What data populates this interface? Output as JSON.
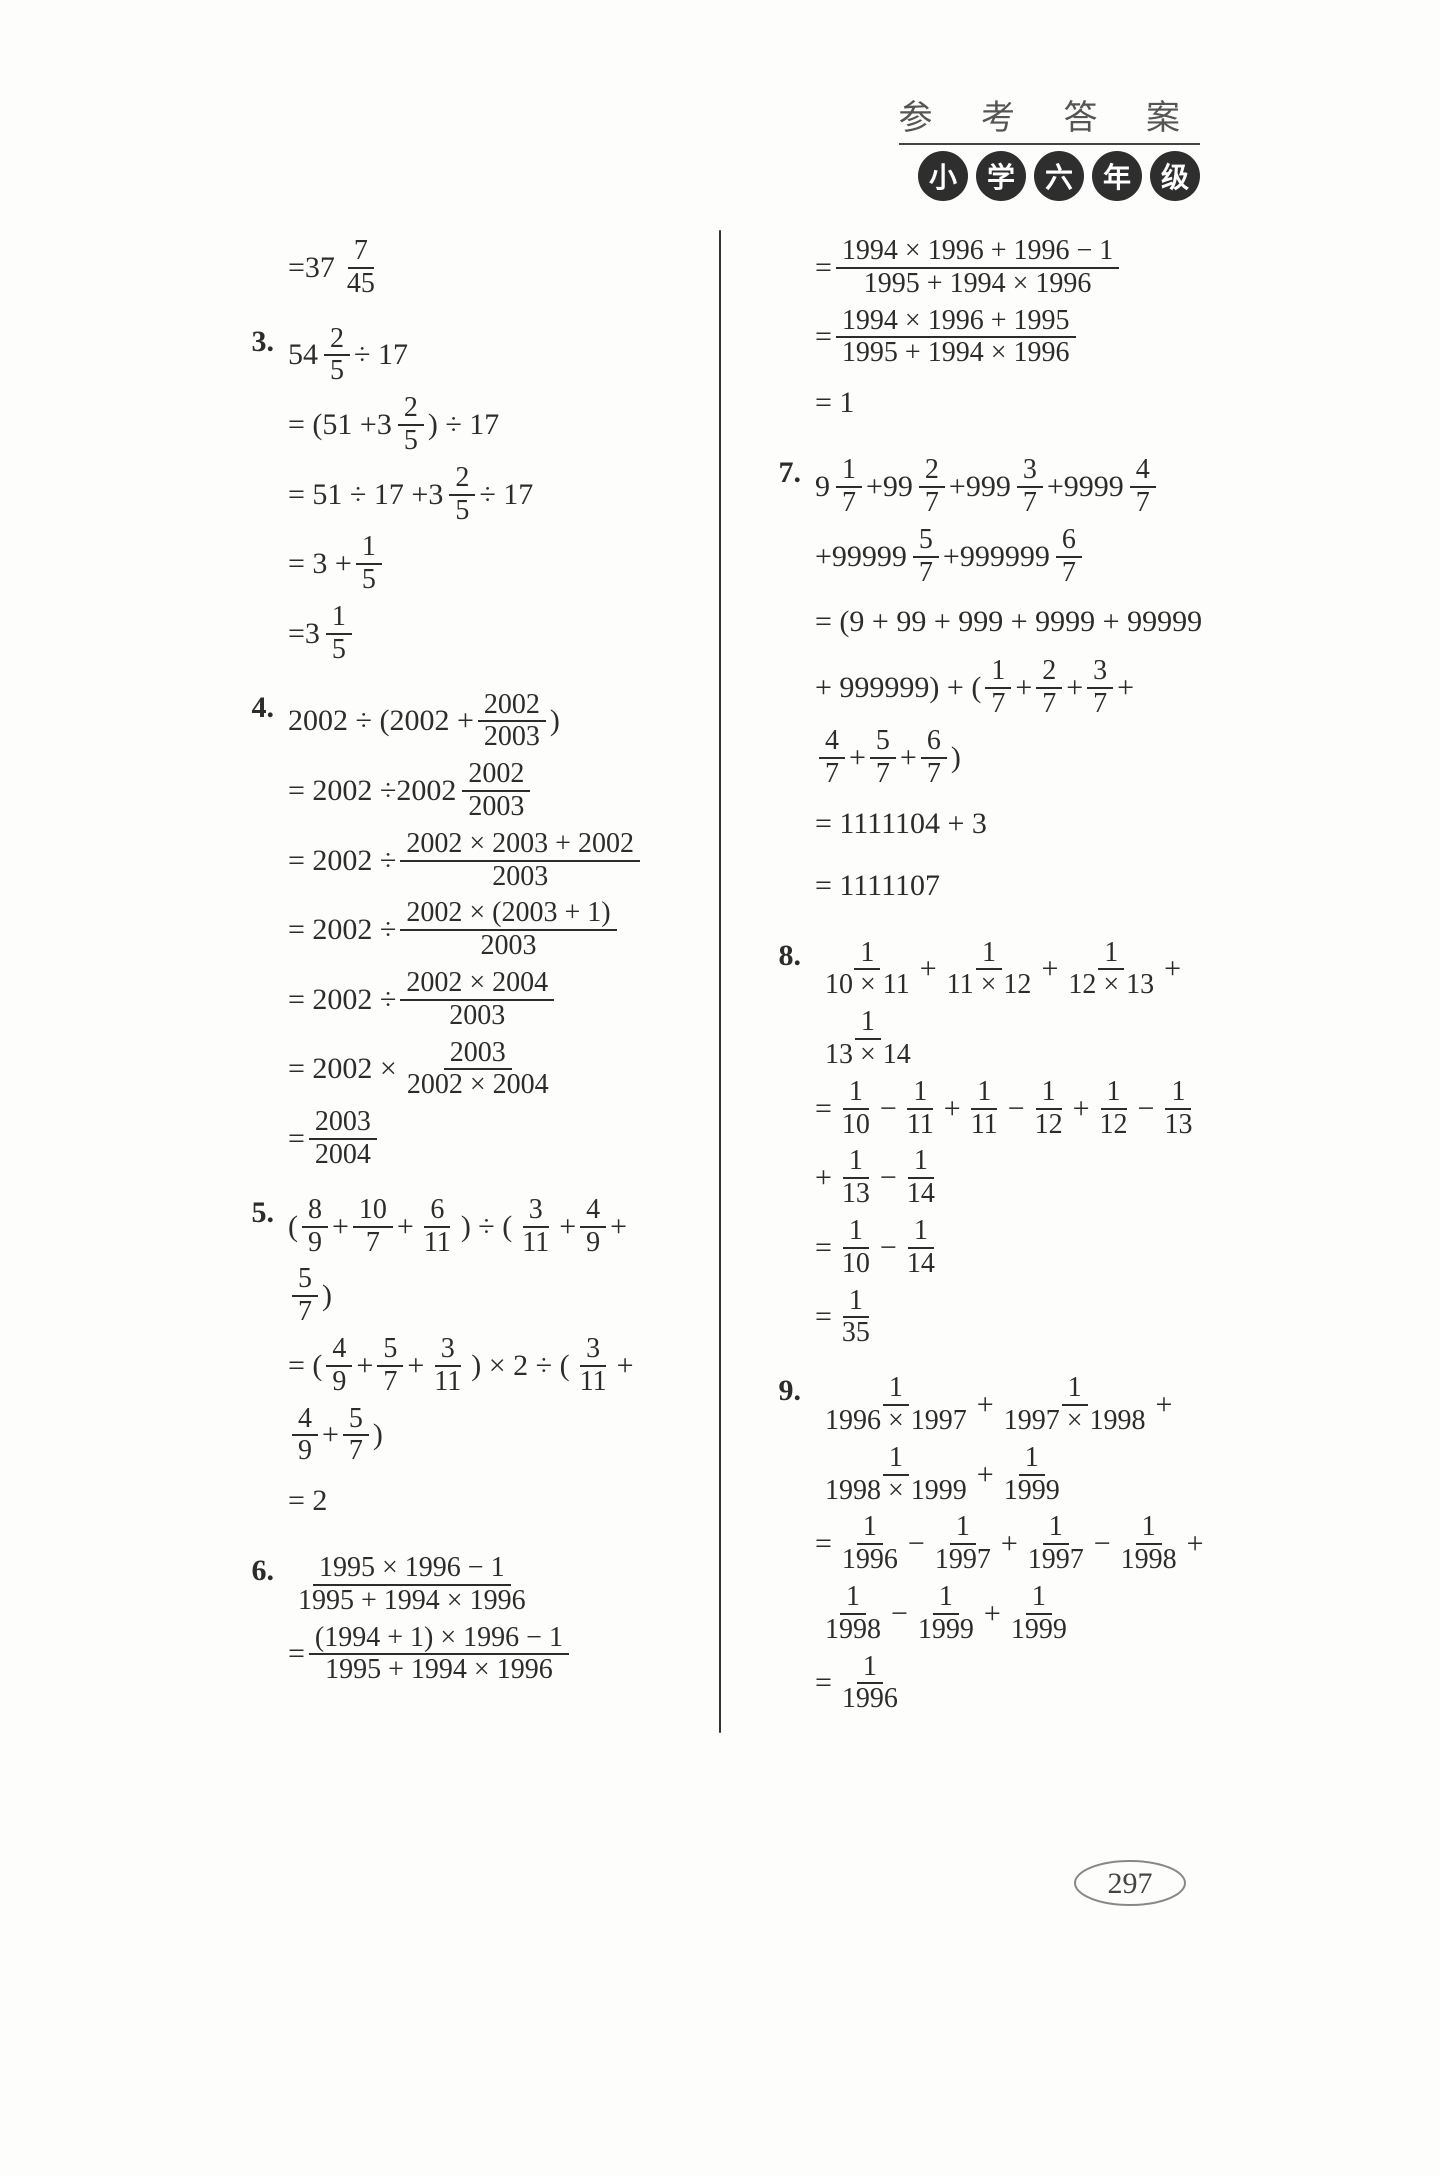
{
  "header": {
    "title": "参 考 答 案",
    "badges": [
      "小",
      "学",
      "六",
      "年",
      "级"
    ]
  },
  "page_number": "297",
  "colors": {
    "badge_bg": "#2e2e2e",
    "badge_fg": "#ffffff",
    "text": "#2c2c2c",
    "bg": "#fdfdfb",
    "divider": "#333333"
  },
  "left_column": [
    {
      "num": "",
      "steps": [
        [
          {
            "t": "text",
            "v": "="
          },
          {
            "t": "mixed",
            "w": "37",
            "n": "7",
            "d": "45"
          }
        ]
      ]
    },
    {
      "num": "3.",
      "steps": [
        [
          {
            "t": "mixed",
            "w": "54",
            "n": "2",
            "d": "5"
          },
          {
            "t": "text",
            "v": " ÷ 17"
          }
        ],
        [
          {
            "t": "text",
            "v": "= (51 + "
          },
          {
            "t": "mixed",
            "w": "3",
            "n": "2",
            "d": "5"
          },
          {
            "t": "text",
            "v": " ) ÷ 17"
          }
        ],
        [
          {
            "t": "text",
            "v": "= 51 ÷ 17 + "
          },
          {
            "t": "mixed",
            "w": "3",
            "n": "2",
            "d": "5"
          },
          {
            "t": "text",
            "v": " ÷ 17"
          }
        ],
        [
          {
            "t": "text",
            "v": "= 3 + "
          },
          {
            "t": "frac",
            "n": "1",
            "d": "5"
          }
        ],
        [
          {
            "t": "text",
            "v": "= "
          },
          {
            "t": "mixed",
            "w": "3",
            "n": "1",
            "d": "5"
          }
        ]
      ]
    },
    {
      "num": "4.",
      "steps": [
        [
          {
            "t": "text",
            "v": "2002 ÷ (2002 + "
          },
          {
            "t": "frac",
            "n": "2002",
            "d": "2003"
          },
          {
            "t": "text",
            "v": ")"
          }
        ],
        [
          {
            "t": "text",
            "v": "= 2002 ÷ "
          },
          {
            "t": "mixed",
            "w": "2002",
            "n": "2002",
            "d": "2003"
          }
        ],
        [
          {
            "t": "text",
            "v": "= 2002 ÷ "
          },
          {
            "t": "frac",
            "n": "2002 × 2003 + 2002",
            "d": "2003"
          }
        ],
        [
          {
            "t": "text",
            "v": "= 2002 ÷ "
          },
          {
            "t": "frac",
            "n": "2002 × (2003 + 1)",
            "d": "2003"
          }
        ],
        [
          {
            "t": "text",
            "v": "= 2002 ÷ "
          },
          {
            "t": "frac",
            "n": "2002 × 2004",
            "d": "2003"
          }
        ],
        [
          {
            "t": "text",
            "v": "= 2002 × "
          },
          {
            "t": "frac",
            "n": "2003",
            "d": "2002 × 2004"
          }
        ],
        [
          {
            "t": "text",
            "v": "= "
          },
          {
            "t": "frac",
            "n": "2003",
            "d": "2004"
          }
        ]
      ]
    },
    {
      "num": "5.",
      "steps": [
        [
          {
            "t": "text",
            "v": "( "
          },
          {
            "t": "frac",
            "n": "8",
            "d": "9"
          },
          {
            "t": "text",
            "v": " + "
          },
          {
            "t": "frac",
            "n": "10",
            "d": "7"
          },
          {
            "t": "text",
            "v": " + "
          },
          {
            "t": "frac",
            "n": "6",
            "d": "11"
          },
          {
            "t": "text",
            "v": " ) ÷ ( "
          },
          {
            "t": "frac",
            "n": "3",
            "d": "11"
          },
          {
            "t": "text",
            "v": " + "
          },
          {
            "t": "frac",
            "n": "4",
            "d": "9"
          },
          {
            "t": "text",
            "v": " +"
          }
        ],
        [
          {
            "t": "frac",
            "n": "5",
            "d": "7"
          },
          {
            "t": "text",
            "v": " )"
          }
        ],
        [
          {
            "t": "text",
            "v": "= ( "
          },
          {
            "t": "frac",
            "n": "4",
            "d": "9"
          },
          {
            "t": "text",
            "v": " + "
          },
          {
            "t": "frac",
            "n": "5",
            "d": "7"
          },
          {
            "t": "text",
            "v": " + "
          },
          {
            "t": "frac",
            "n": "3",
            "d": "11"
          },
          {
            "t": "text",
            "v": " ) × 2 ÷ ( "
          },
          {
            "t": "frac",
            "n": "3",
            "d": "11"
          },
          {
            "t": "text",
            "v": " +"
          }
        ],
        [
          {
            "t": "frac",
            "n": "4",
            "d": "9"
          },
          {
            "t": "text",
            "v": " + "
          },
          {
            "t": "frac",
            "n": "5",
            "d": "7"
          },
          {
            "t": "text",
            "v": " )"
          }
        ],
        [
          {
            "t": "text",
            "v": "= 2"
          }
        ]
      ]
    },
    {
      "num": "6.",
      "steps": [
        [
          {
            "t": "frac",
            "n": "1995 × 1996 − 1",
            "d": "1995 + 1994 × 1996"
          }
        ],
        [
          {
            "t": "text",
            "v": "= "
          },
          {
            "t": "frac",
            "n": "(1994 + 1) × 1996 − 1",
            "d": "1995 + 1994 × 1996"
          }
        ]
      ]
    }
  ],
  "right_column": [
    {
      "num": "",
      "steps": [
        [
          {
            "t": "text",
            "v": "= "
          },
          {
            "t": "frac",
            "n": "1994 × 1996 + 1996 − 1",
            "d": "1995 + 1994 × 1996"
          }
        ],
        [
          {
            "t": "text",
            "v": "= "
          },
          {
            "t": "frac",
            "n": "1994 × 1996 + 1995",
            "d": "1995 + 1994 × 1996"
          }
        ],
        [
          {
            "t": "text",
            "v": "= 1"
          }
        ]
      ]
    },
    {
      "num": "7.",
      "steps": [
        [
          {
            "t": "mixed",
            "w": "9",
            "n": "1",
            "d": "7"
          },
          {
            "t": "text",
            "v": " + "
          },
          {
            "t": "mixed",
            "w": "99",
            "n": "2",
            "d": "7"
          },
          {
            "t": "text",
            "v": " + "
          },
          {
            "t": "mixed",
            "w": "999",
            "n": "3",
            "d": "7"
          },
          {
            "t": "text",
            "v": " + "
          },
          {
            "t": "mixed",
            "w": "9999",
            "n": "4",
            "d": "7"
          }
        ],
        [
          {
            "t": "text",
            "v": "+ "
          },
          {
            "t": "mixed",
            "w": "99999",
            "n": "5",
            "d": "7"
          },
          {
            "t": "text",
            "v": " + "
          },
          {
            "t": "mixed",
            "w": "999999",
            "n": "6",
            "d": "7"
          }
        ],
        [
          {
            "t": "text",
            "v": "= (9 + 99 + 999 + 9999 + 99999"
          }
        ],
        [
          {
            "t": "text",
            "v": "+ 999999) + ( "
          },
          {
            "t": "frac",
            "n": "1",
            "d": "7"
          },
          {
            "t": "text",
            "v": " + "
          },
          {
            "t": "frac",
            "n": "2",
            "d": "7"
          },
          {
            "t": "text",
            "v": " + "
          },
          {
            "t": "frac",
            "n": "3",
            "d": "7"
          },
          {
            "t": "text",
            "v": " +"
          }
        ],
        [
          {
            "t": "frac",
            "n": "4",
            "d": "7"
          },
          {
            "t": "text",
            "v": " + "
          },
          {
            "t": "frac",
            "n": "5",
            "d": "7"
          },
          {
            "t": "text",
            "v": " + "
          },
          {
            "t": "frac",
            "n": "6",
            "d": "7"
          },
          {
            "t": "text",
            "v": " )"
          }
        ],
        [
          {
            "t": "text",
            "v": "= 1111104 + 3"
          }
        ],
        [
          {
            "t": "text",
            "v": "= 1111107"
          }
        ]
      ]
    },
    {
      "num": "8.",
      "steps": [
        [
          {
            "t": "frac",
            "n": "1",
            "d": "10 × 11"
          },
          {
            "t": "text",
            "v": " + "
          },
          {
            "t": "frac",
            "n": "1",
            "d": "11 × 12"
          },
          {
            "t": "text",
            "v": " + "
          },
          {
            "t": "frac",
            "n": "1",
            "d": "12 × 13"
          },
          {
            "t": "text",
            "v": " +"
          }
        ],
        [
          {
            "t": "frac",
            "n": "1",
            "d": "13 × 14"
          }
        ],
        [
          {
            "t": "text",
            "v": "= "
          },
          {
            "t": "frac",
            "n": "1",
            "d": "10"
          },
          {
            "t": "text",
            "v": " − "
          },
          {
            "t": "frac",
            "n": "1",
            "d": "11"
          },
          {
            "t": "text",
            "v": " + "
          },
          {
            "t": "frac",
            "n": "1",
            "d": "11"
          },
          {
            "t": "text",
            "v": " − "
          },
          {
            "t": "frac",
            "n": "1",
            "d": "12"
          },
          {
            "t": "text",
            "v": " + "
          },
          {
            "t": "frac",
            "n": "1",
            "d": "12"
          },
          {
            "t": "text",
            "v": " − "
          },
          {
            "t": "frac",
            "n": "1",
            "d": "13"
          }
        ],
        [
          {
            "t": "text",
            "v": "+ "
          },
          {
            "t": "frac",
            "n": "1",
            "d": "13"
          },
          {
            "t": "text",
            "v": " − "
          },
          {
            "t": "frac",
            "n": "1",
            "d": "14"
          }
        ],
        [
          {
            "t": "text",
            "v": "= "
          },
          {
            "t": "frac",
            "n": "1",
            "d": "10"
          },
          {
            "t": "text",
            "v": " − "
          },
          {
            "t": "frac",
            "n": "1",
            "d": "14"
          }
        ],
        [
          {
            "t": "text",
            "v": "= "
          },
          {
            "t": "frac",
            "n": "1",
            "d": "35"
          }
        ]
      ]
    },
    {
      "num": "9.",
      "steps": [
        [
          {
            "t": "frac",
            "n": "1",
            "d": "1996 × 1997"
          },
          {
            "t": "text",
            "v": " + "
          },
          {
            "t": "frac",
            "n": "1",
            "d": "1997 × 1998"
          },
          {
            "t": "text",
            "v": " +"
          }
        ],
        [
          {
            "t": "frac",
            "n": "1",
            "d": "1998 × 1999"
          },
          {
            "t": "text",
            "v": " + "
          },
          {
            "t": "frac",
            "n": "1",
            "d": "1999"
          }
        ],
        [
          {
            "t": "text",
            "v": "= "
          },
          {
            "t": "frac",
            "n": "1",
            "d": "1996"
          },
          {
            "t": "text",
            "v": " − "
          },
          {
            "t": "frac",
            "n": "1",
            "d": "1997"
          },
          {
            "t": "text",
            "v": " + "
          },
          {
            "t": "frac",
            "n": "1",
            "d": "1997"
          },
          {
            "t": "text",
            "v": " − "
          },
          {
            "t": "frac",
            "n": "1",
            "d": "1998"
          },
          {
            "t": "text",
            "v": " +"
          }
        ],
        [
          {
            "t": "frac",
            "n": "1",
            "d": "1998"
          },
          {
            "t": "text",
            "v": " − "
          },
          {
            "t": "frac",
            "n": "1",
            "d": "1999"
          },
          {
            "t": "text",
            "v": " + "
          },
          {
            "t": "frac",
            "n": "1",
            "d": "1999"
          }
        ],
        [
          {
            "t": "text",
            "v": "= "
          },
          {
            "t": "frac",
            "n": "1",
            "d": "1996"
          }
        ]
      ]
    }
  ]
}
